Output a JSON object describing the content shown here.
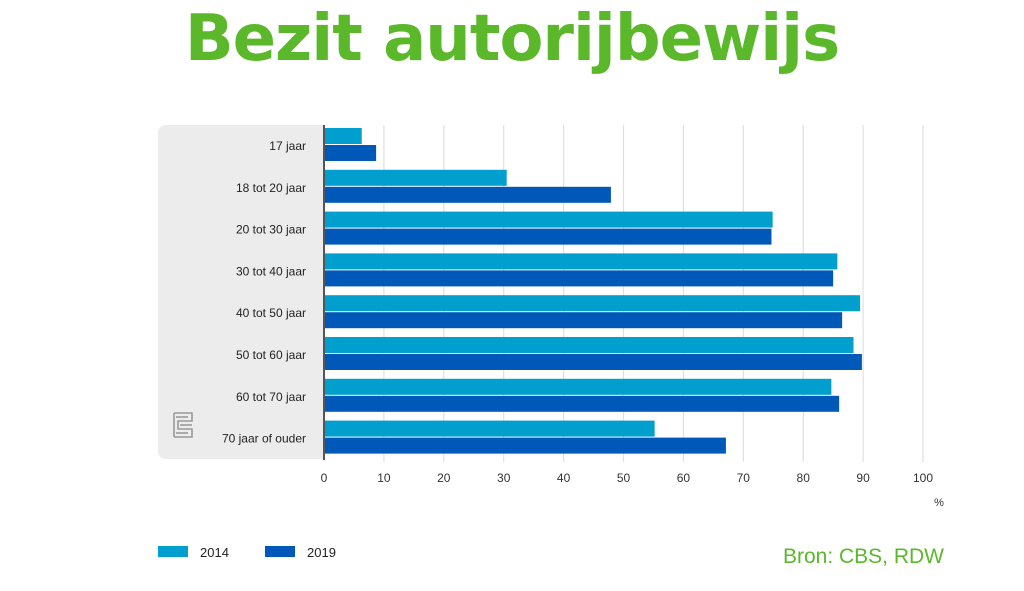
{
  "title": "Bezit autorijbewijs",
  "source": "Bron: CBS, RDW",
  "logo_text": "cbs",
  "chart_data": {
    "type": "bar",
    "orientation": "horizontal",
    "categories": [
      "17 jaar",
      "18 tot 20 jaar",
      "20 tot 30 jaar",
      "30 tot 40 jaar",
      "40 tot 50 jaar",
      "50 tot 60 jaar",
      "60 tot 70 jaar",
      "70 jaar of ouder"
    ],
    "series": [
      {
        "name": "2014",
        "color": "#009fcd",
        "values": [
          6.3,
          30.5,
          74.9,
          85.7,
          89.5,
          88.4,
          84.7,
          55.2
        ]
      },
      {
        "name": "2019",
        "color": "#0058b8",
        "values": [
          8.7,
          47.9,
          74.7,
          85.0,
          86.5,
          89.8,
          86.0,
          67.1
        ]
      }
    ],
    "xlim": [
      0,
      100
    ],
    "xticks": [
      "0",
      "10",
      "20",
      "30",
      "40",
      "50",
      "60",
      "70",
      "80",
      "90",
      "100"
    ],
    "xlabel": "%",
    "grid": true,
    "legend": "bottom-left"
  }
}
